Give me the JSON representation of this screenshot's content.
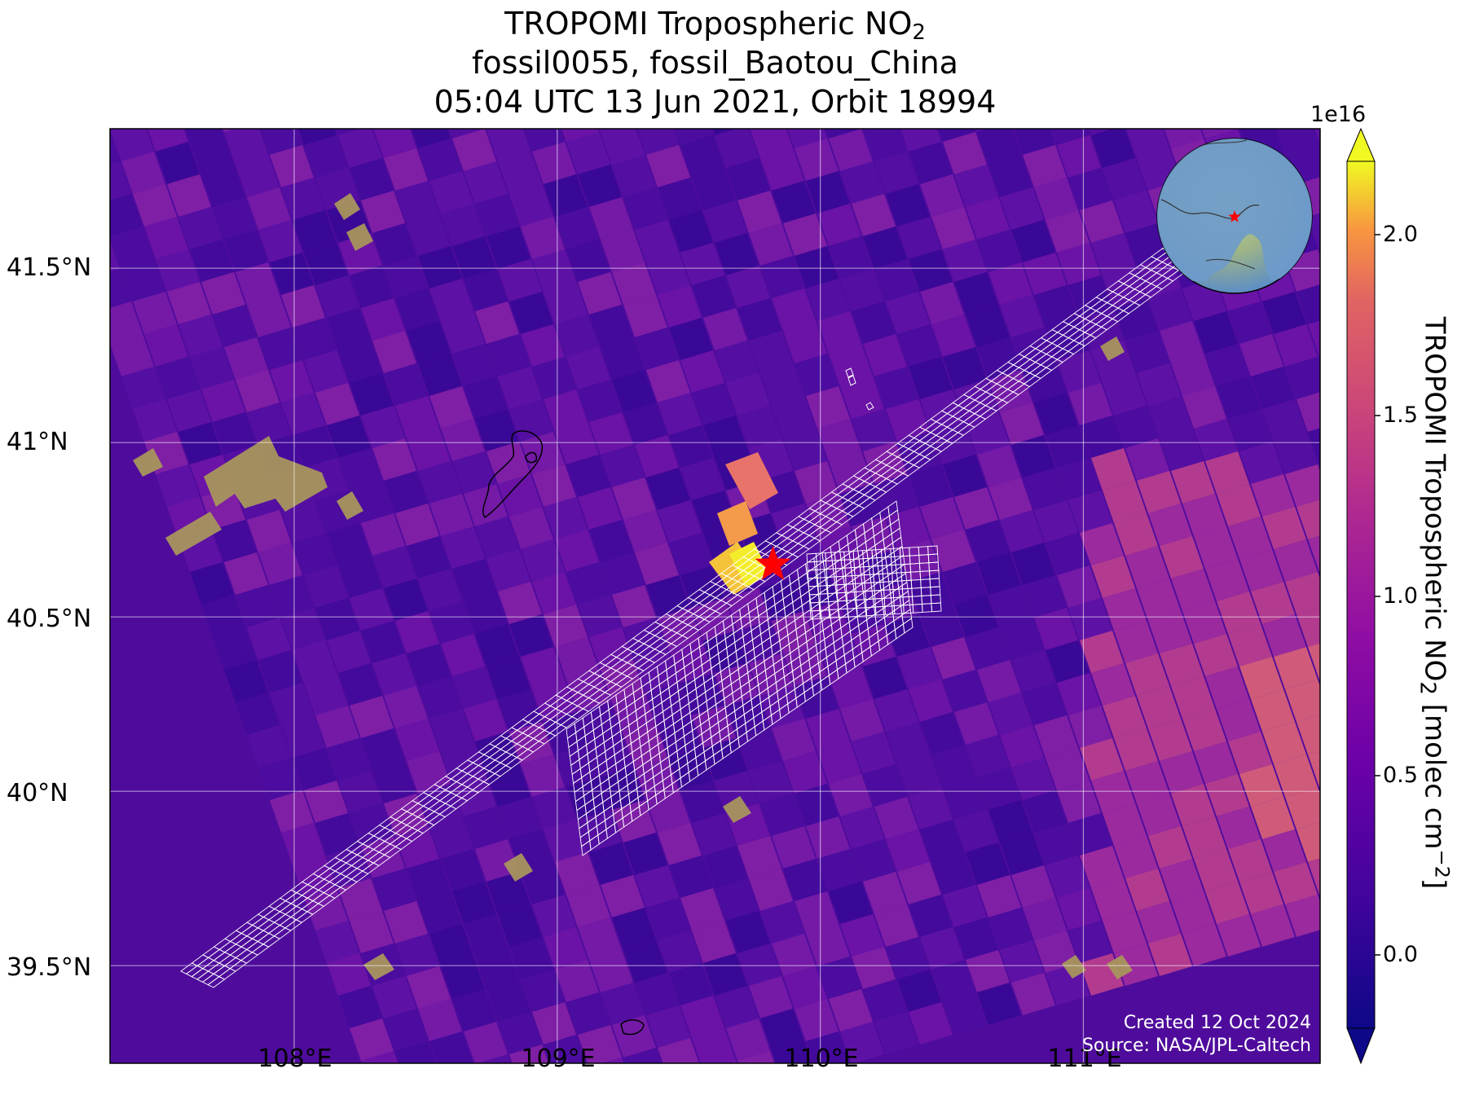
{
  "title": {
    "line1_prefix": "TROPOMI Tropospheric NO",
    "line1_sub": "2",
    "line2": "fossil0055, fossil_Baotou_China",
    "line3": "05:04 UTC 13 Jun 2021, Orbit 18994"
  },
  "map": {
    "lat_ticks": [
      "41.5°N",
      "41°N",
      "40.5°N",
      "40°N",
      "39.5°N"
    ],
    "lon_ticks": [
      "108°E",
      "109°E",
      "110°E",
      "111°E"
    ],
    "extent": {
      "lon_min": 107.3,
      "lon_max": 111.9,
      "lat_min": 39.22,
      "lat_max": 41.9
    },
    "target_marker": {
      "lon": 109.82,
      "lat": 40.65,
      "icon": "red-star-icon",
      "color": "#ff0000"
    },
    "gridlines": true,
    "inset": "globe-inset-asia"
  },
  "colorbar": {
    "label_prefix": "TROPOMI Tropospheric NO",
    "label_sub": "2",
    "label_suffix": " [molec cm",
    "label_sup": "−2",
    "label_end": "]",
    "exponent": "1e16",
    "ticks": [
      "2.0",
      "1.5",
      "1.0",
      "0.5",
      "0.0"
    ],
    "range": [
      -0.2,
      2.2
    ],
    "colormap": "plasma",
    "extend": "both"
  },
  "credits": {
    "created": "Created 12 Oct 2024",
    "source": "Source: NASA/JPL-Caltech"
  },
  "colors": {
    "background_no2": "#5a10a0",
    "hotspot": "#f5e61e",
    "swath_outline": "#ffffff",
    "marker": "#ff0000"
  }
}
